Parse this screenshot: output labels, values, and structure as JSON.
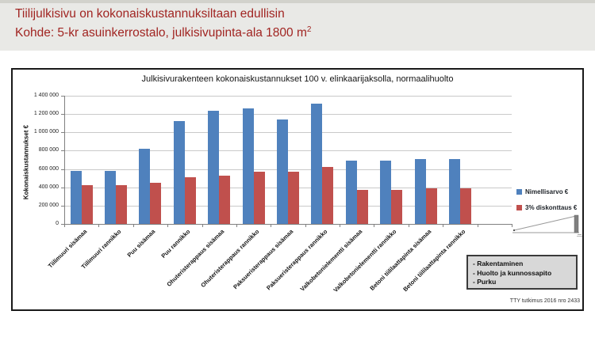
{
  "header": {
    "line1": "Tiilijulkisivu on kokonaiskustannuksiltaan edullisin",
    "line2_main": "Kohde: 5-kr asuinkerrostalo, julkisivupinta-ala 1800 m",
    "line2_sup": "2",
    "text_color": "#A12522",
    "bg_color": "#E9E9E6"
  },
  "chart_data": {
    "type": "bar",
    "title": "Julkisivurakenteen kokonaiskustannukset 100 v. elinkaarijaksolla, normaalihuolto",
    "ylabel": "Kokonaiskustannukset €",
    "ylim": [
      0,
      1400000
    ],
    "ytick_step": 200000,
    "ytick_labels": [
      "0",
      "200 000",
      "400 000",
      "600 000",
      "800 000",
      "1 000 000",
      "1 200 000",
      "1 400 000"
    ],
    "grid": true,
    "legend_position": "right",
    "categories": [
      "Tiilimuuri sisämaa",
      "Tiilimuuri rannikko",
      "Puu sisämaa",
      "Puu rannikko",
      "Ohuteristerappaus sisämaa",
      "Ohuteristerappaus rannikko",
      "Paksueristerappaus sisämaa",
      "Paksueristerappaus rannikko",
      "Valkobetonielementti sisämaa",
      "Valkobetonielementti rannikko",
      "Betoni tiililaattapinta sisämaa",
      "Betoni tiililaattapinta rannikko"
    ],
    "series": [
      {
        "name": "Nimellisarvo €",
        "color": "#4F81BD",
        "values": [
          580000,
          580000,
          820000,
          1120000,
          1240000,
          1260000,
          1140000,
          1310000,
          690000,
          690000,
          710000,
          710000
        ]
      },
      {
        "name": "3% diskonttaus €",
        "color": "#C0504D",
        "values": [
          420000,
          420000,
          450000,
          510000,
          530000,
          570000,
          570000,
          620000,
          370000,
          370000,
          390000,
          390000
        ]
      }
    ]
  },
  "annotation_box": {
    "lines": [
      "- Rakentaminen",
      "- Huolto ja kunnossapito",
      "- Purku"
    ]
  },
  "footnote": "TTY tutkimus 2016 nro 2433",
  "icons": {
    "cost_accumulation_sketch": "triangle-ramp-with-end-bar"
  }
}
